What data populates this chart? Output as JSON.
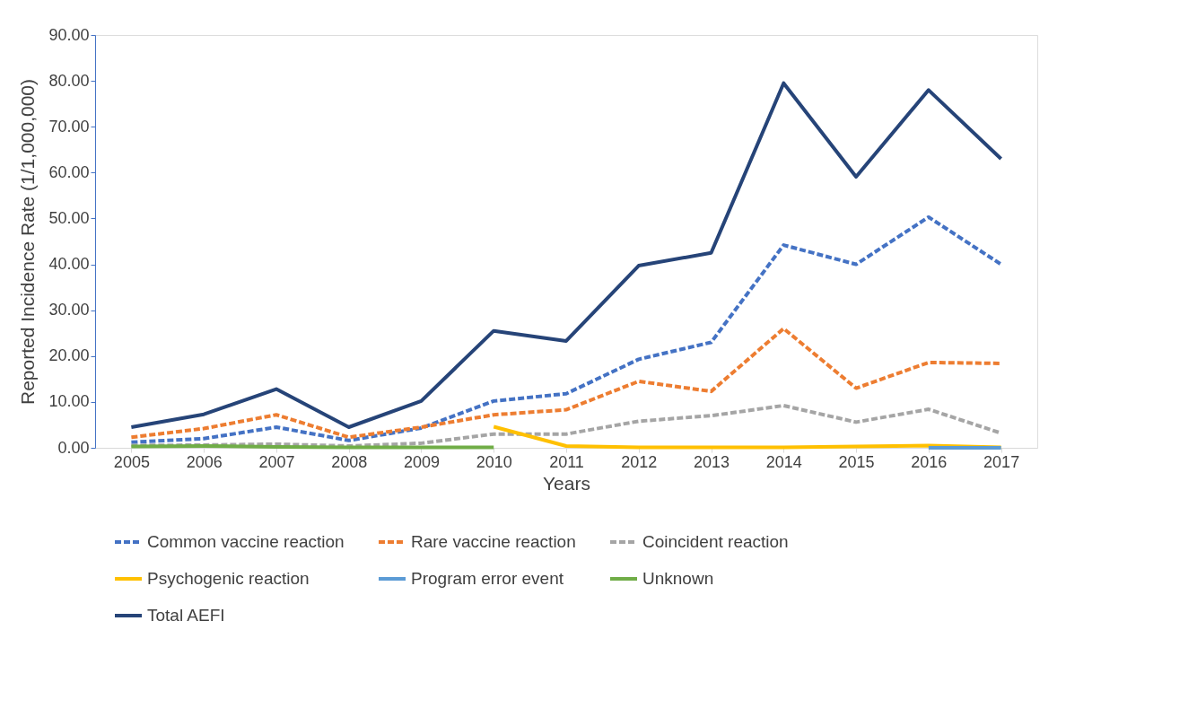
{
  "chart_data": {
    "type": "line",
    "xlabel": "Years",
    "ylabel": "Reported Incidence Rate  (1/1,000,000)",
    "categories": [
      "2005",
      "2006",
      "2007",
      "2008",
      "2009",
      "2010",
      "2011",
      "2012",
      "2013",
      "2014",
      "2015",
      "2016",
      "2017"
    ],
    "ylim": [
      0,
      90
    ],
    "yticks": [
      {
        "value": 0,
        "label": "0.00"
      },
      {
        "value": 10,
        "label": "10.00"
      },
      {
        "value": 20,
        "label": "20.00"
      },
      {
        "value": 30,
        "label": "30.00"
      },
      {
        "value": 40,
        "label": "40.00"
      },
      {
        "value": 50,
        "label": "50.00"
      },
      {
        "value": 60,
        "label": "60.00"
      },
      {
        "value": 70,
        "label": "70.00"
      },
      {
        "value": 80,
        "label": "80.00"
      },
      {
        "value": 90,
        "label": "90.00"
      }
    ],
    "grid": false,
    "legend": "bottom",
    "marker": "none",
    "series": [
      {
        "name": "Common vaccine reaction",
        "color": "#4472c4",
        "line_style": "dashed",
        "values": [
          1.2,
          2.0,
          4.5,
          1.6,
          4.3,
          10.2,
          11.8,
          19.3,
          23.0,
          44.2,
          40.0,
          50.3,
          40.0
        ]
      },
      {
        "name": "Rare vaccine reaction",
        "color": "#ed7d31",
        "line_style": "dashed",
        "values": [
          2.3,
          4.2,
          7.2,
          2.3,
          4.5,
          7.2,
          8.3,
          14.5,
          12.3,
          26.0,
          13.0,
          18.6,
          18.4
        ]
      },
      {
        "name": "Coincident reaction",
        "color": "#a5a5a5",
        "line_style": "dashed",
        "values": [
          0.5,
          0.6,
          0.8,
          0.4,
          1.0,
          3.0,
          3.0,
          5.8,
          7.0,
          9.2,
          5.6,
          8.4,
          3.2
        ]
      },
      {
        "name": "Psychogenic reaction",
        "color": "#ffc000",
        "line_style": "solid",
        "values": [
          null,
          null,
          null,
          null,
          null,
          4.6,
          0.4,
          0.1,
          0.1,
          0.1,
          0.3,
          0.5,
          0.1
        ]
      },
      {
        "name": "Program error event",
        "color": "#5b9bd5",
        "line_style": "solid",
        "values": [
          null,
          null,
          null,
          null,
          null,
          null,
          null,
          null,
          null,
          null,
          null,
          0.0,
          0.0
        ]
      },
      {
        "name": "Unknown",
        "color": "#70ad47",
        "line_style": "solid",
        "values": [
          0.3,
          0.4,
          0.2,
          0.1,
          0.1,
          0.1,
          null,
          null,
          null,
          null,
          null,
          null,
          null
        ]
      },
      {
        "name": "Total AEFI",
        "color": "#264478",
        "line_style": "solid",
        "values": [
          4.5,
          7.3,
          12.8,
          4.5,
          10.2,
          25.5,
          23.3,
          39.7,
          42.5,
          79.5,
          59.1,
          78.0,
          63.0
        ]
      }
    ]
  }
}
